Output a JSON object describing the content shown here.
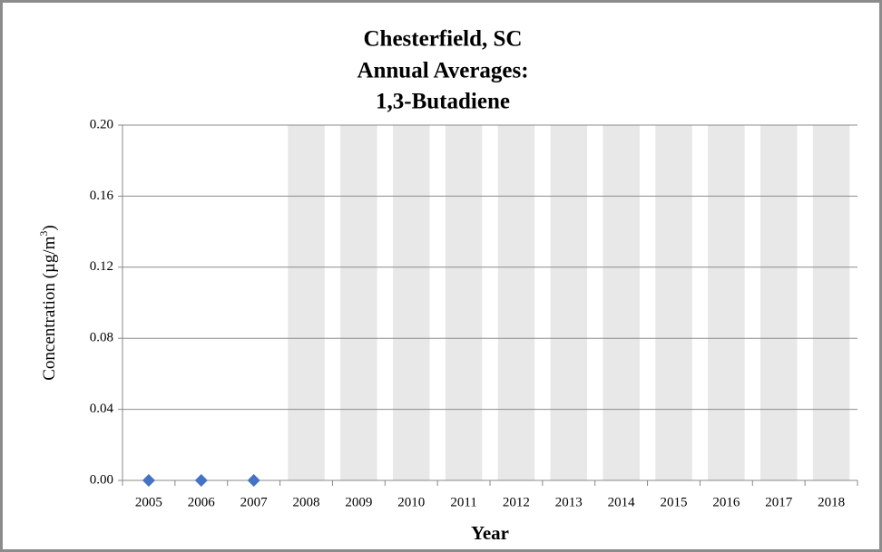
{
  "chart_data": {
    "type": "bar",
    "title": [
      "Chesterfield, SC",
      "Annual  Averages:",
      "1,3-Butadiene"
    ],
    "x_label": "Year",
    "y_label": [
      "Concentration (µg/m",
      "3",
      ")"
    ],
    "categories": [
      "2005",
      "2006",
      "2007",
      "2008",
      "2009",
      "2010",
      "2011",
      "2012",
      "2013",
      "2014",
      "2015",
      "2016",
      "2017",
      "2018"
    ],
    "series": [
      {
        "type": "bar",
        "color": "#e8e8e8",
        "values": [
          null,
          null,
          null,
          0.2,
          0.2,
          0.2,
          0.2,
          0.2,
          0.2,
          0.2,
          0.2,
          0.2,
          0.2,
          0.2
        ]
      },
      {
        "type": "scatter",
        "color": "#4472c4",
        "values": [
          0,
          0,
          0,
          null,
          null,
          null,
          null,
          null,
          null,
          null,
          null,
          null,
          null,
          null
        ]
      }
    ],
    "ylim": [
      0,
      0.2
    ],
    "yticks": [
      {
        "value": 0,
        "label": "0.00"
      },
      {
        "value": 0.04,
        "label": "0.04"
      },
      {
        "value": 0.08,
        "label": "0.08"
      },
      {
        "value": 0.12,
        "label": "0.12"
      },
      {
        "value": 0.16,
        "label": "0.16"
      },
      {
        "value": 0.2,
        "label": "0.20"
      }
    ],
    "grid": true
  }
}
